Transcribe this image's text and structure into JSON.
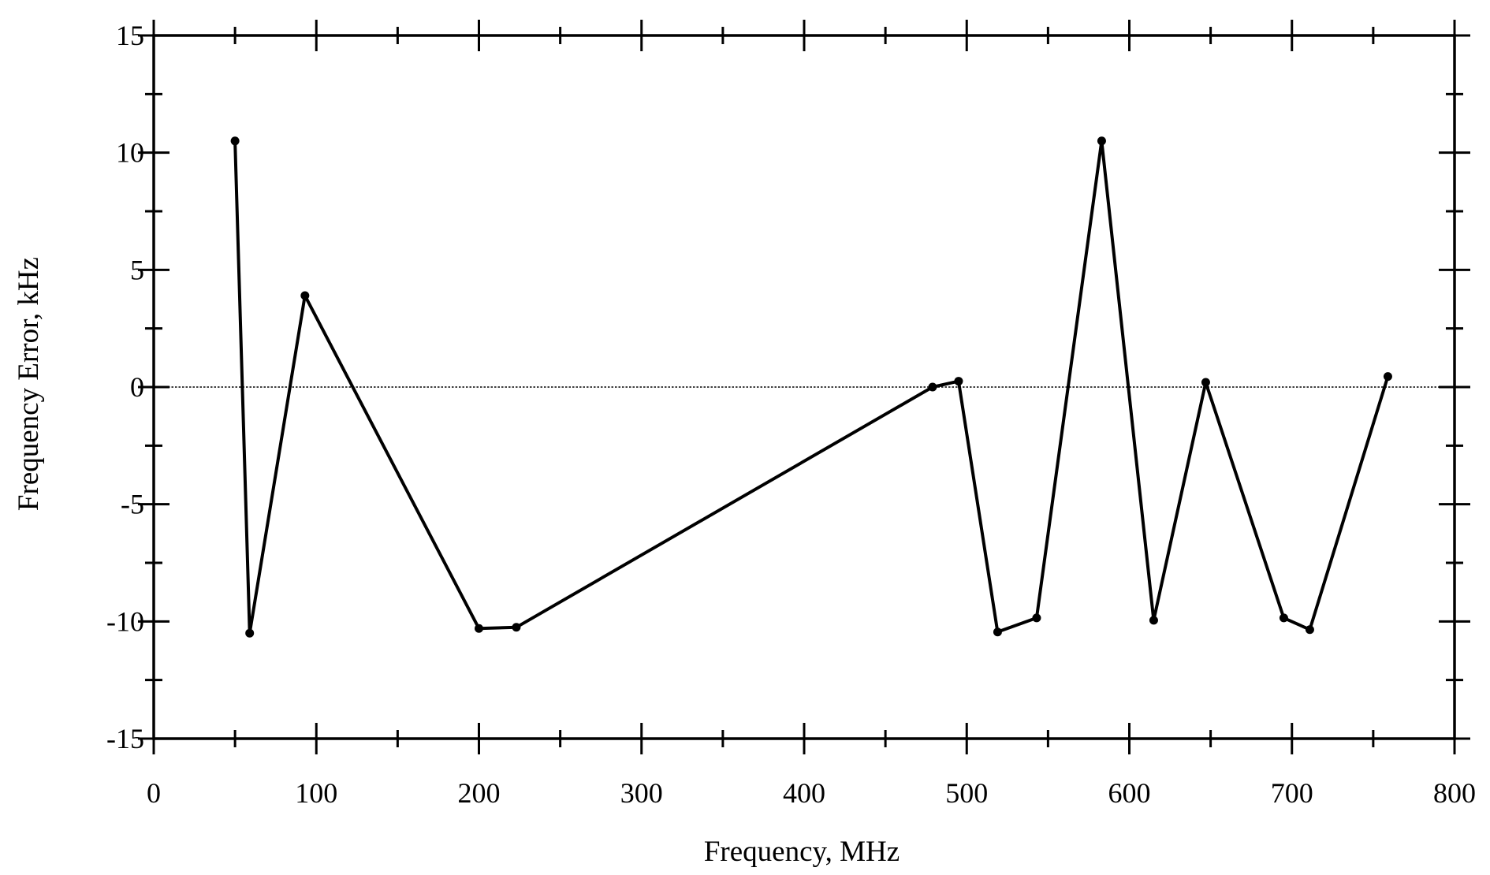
{
  "chart_data": {
    "type": "line",
    "title": "",
    "xlabel": "Frequency, MHz",
    "ylabel": "Frequency Error, kHz",
    "xlim": [
      0,
      800
    ],
    "ylim": [
      -15,
      15
    ],
    "x_ticks": [
      0,
      100,
      200,
      300,
      400,
      500,
      600,
      700,
      800
    ],
    "x_tick_labels": [
      "0",
      "100",
      "200",
      "300",
      "400",
      "500",
      "600",
      "700",
      "800"
    ],
    "y_ticks": [
      15,
      10,
      5,
      0,
      -5,
      -10,
      -15
    ],
    "y_tick_labels": [
      "15",
      "10",
      "5",
      "0",
      "-5",
      "-10",
      "-15"
    ],
    "x_minor_step": 50,
    "y_minor_step": 2.5,
    "grid": false,
    "legend": "none",
    "reference_line": {
      "y": 0,
      "style": "dotted"
    },
    "series": [
      {
        "x": [
          50,
          59,
          93,
          200,
          223,
          479,
          495,
          519,
          543,
          583,
          615,
          647,
          695,
          711,
          759
        ],
        "y": [
          10.5,
          -10.5,
          3.9,
          -10.3,
          -10.25,
          0,
          0.25,
          -10.45,
          -9.85,
          10.5,
          -9.95,
          0.2,
          -9.85,
          -10.35,
          0.45
        ],
        "color": "#000000",
        "marker": "dot"
      }
    ]
  }
}
